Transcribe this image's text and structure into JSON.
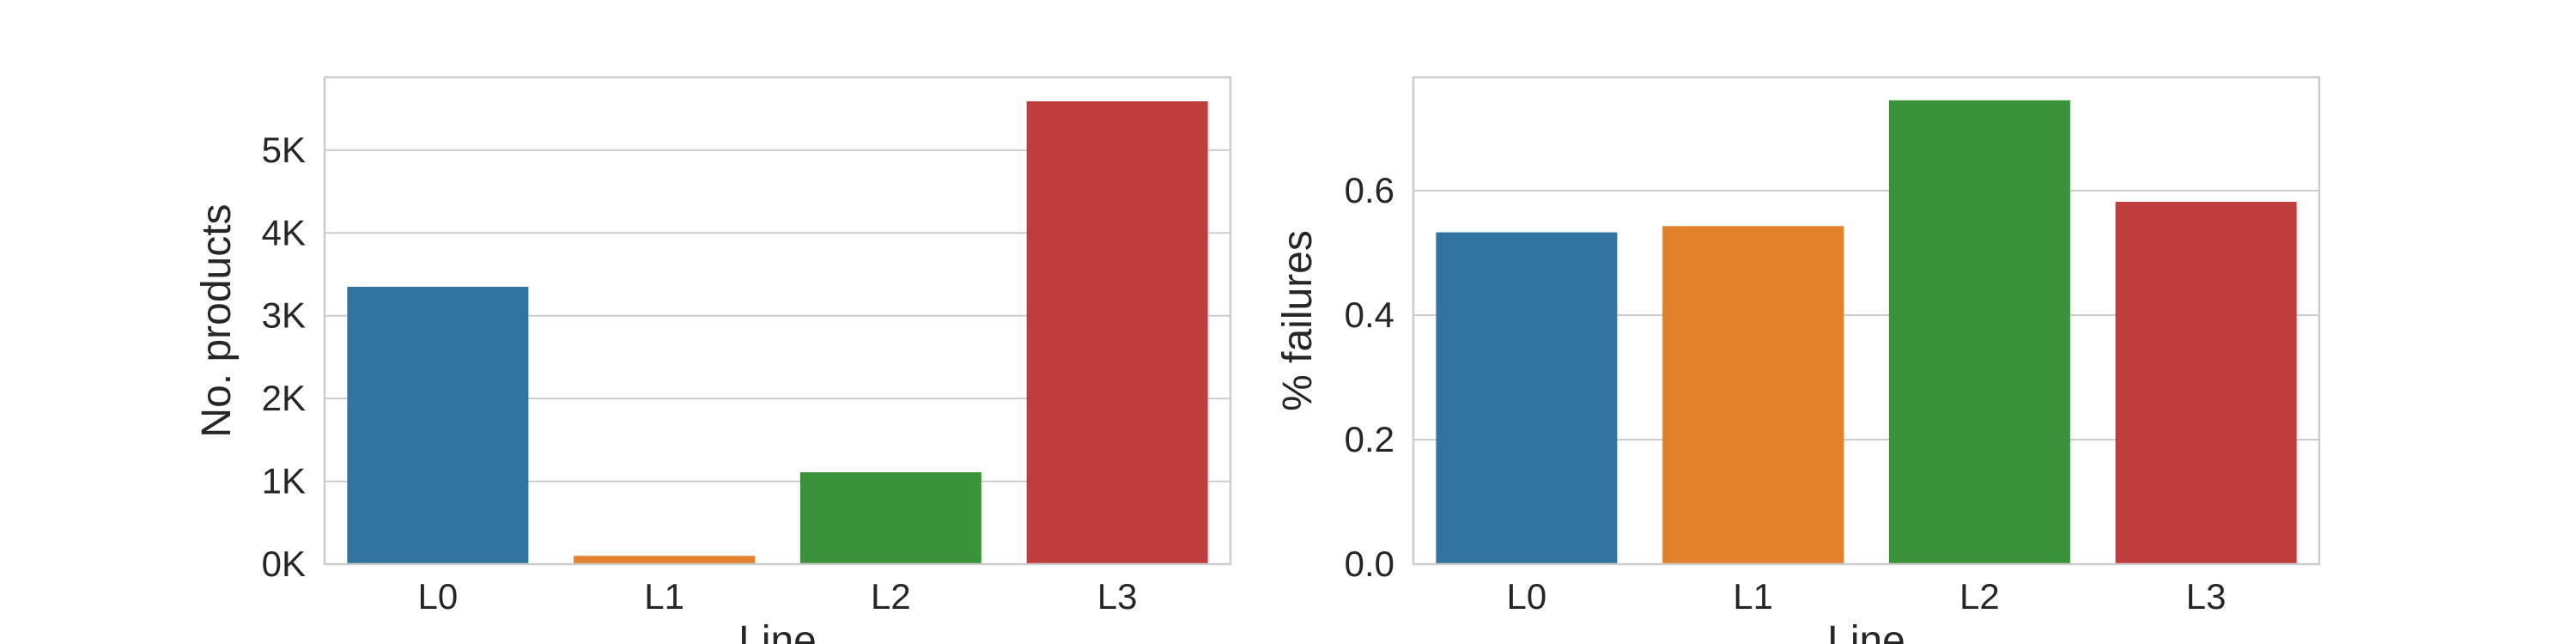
{
  "chart_data": [
    {
      "type": "bar",
      "categories": [
        "L0",
        "L1",
        "L2",
        "L3"
      ],
      "values": [
        3350,
        100,
        1110,
        5590
      ],
      "xlabel": "Line",
      "ylabel": "No. products",
      "ylim": [
        0,
        5880
      ],
      "yticks": [
        0,
        1000,
        2000,
        3000,
        4000,
        5000
      ],
      "ytick_labels": [
        "0K",
        "1K",
        "2K",
        "3K",
        "4K",
        "5K"
      ],
      "grid": true,
      "colors": [
        "#3274a1",
        "#e1812c",
        "#3a923a",
        "#c03d3e"
      ]
    },
    {
      "type": "bar",
      "categories": [
        "L0",
        "L1",
        "L2",
        "L3"
      ],
      "values": [
        0.533,
        0.543,
        0.745,
        0.582
      ],
      "xlabel": "Line",
      "ylabel": "% failures",
      "ylim": [
        0,
        0.782
      ],
      "yticks": [
        0.0,
        0.2,
        0.4,
        0.6
      ],
      "ytick_labels": [
        "0.0",
        "0.2",
        "0.4",
        "0.6"
      ],
      "grid": true,
      "colors": [
        "#3274a1",
        "#e1812c",
        "#3a923a",
        "#c03d3e"
      ]
    }
  ]
}
